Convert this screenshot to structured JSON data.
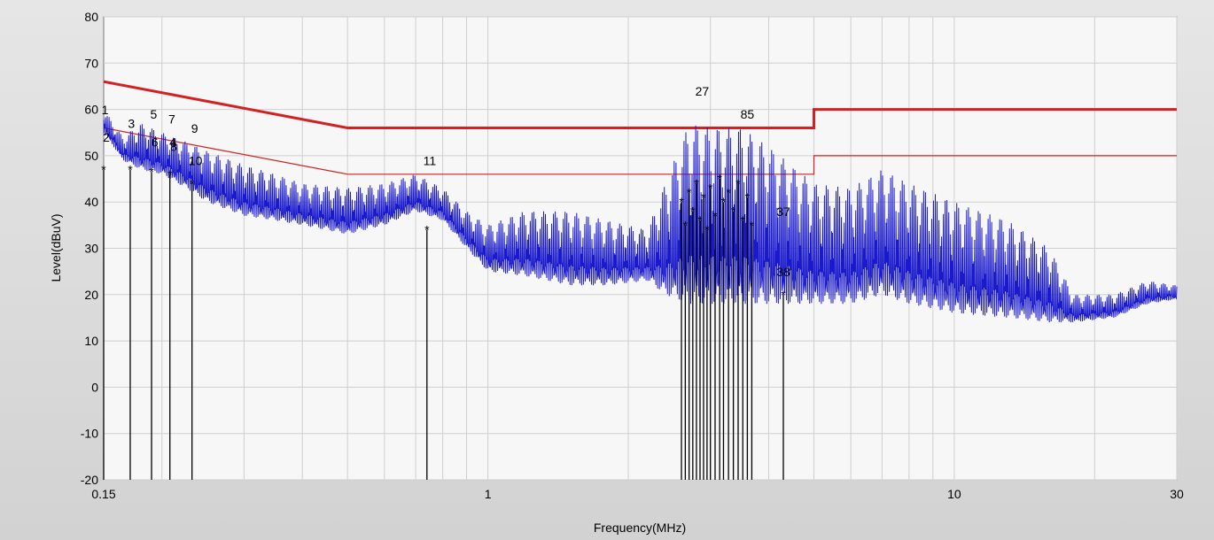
{
  "chart_data": {
    "type": "line",
    "xlabel": "Frequency(MHz)",
    "ylabel": "Level(dBuV)",
    "xscale": "log",
    "xlim": [
      0.15,
      30
    ],
    "ylim": [
      -20,
      80
    ],
    "grid": true,
    "x_tick_labels": [
      "0.15",
      "1",
      "10",
      "30"
    ],
    "x_tick_values": [
      0.15,
      1,
      10,
      30
    ],
    "y_tick_values": [
      -20,
      -10,
      0,
      10,
      20,
      30,
      40,
      50,
      60,
      70,
      80
    ],
    "y_tick_labels": [
      "-20",
      "-10",
      "0",
      "10",
      "20",
      "30",
      "40",
      "50",
      "60",
      "70",
      "80"
    ],
    "colors": {
      "spectrum": "#1a1acc",
      "limit": "#d42020",
      "marker": "#000000",
      "plot_background": "#f7f7f7",
      "grid": "#cfcfcf"
    },
    "limit_lines": [
      {
        "style": "thick",
        "points": [
          [
            0.15,
            66
          ],
          [
            0.5,
            56
          ],
          [
            5,
            56
          ],
          [
            5,
            60
          ],
          [
            30,
            60
          ]
        ]
      },
      {
        "style": "thin",
        "points": [
          [
            0.15,
            56
          ],
          [
            0.5,
            46
          ],
          [
            5,
            46
          ],
          [
            5,
            50
          ],
          [
            30,
            50
          ]
        ]
      }
    ],
    "spectrum_envelope": [
      {
        "x": 0.15,
        "peak": 60,
        "trough": 55
      },
      {
        "x": 0.165,
        "peak": 54,
        "trough": 49
      },
      {
        "x": 0.18,
        "peak": 57,
        "trough": 47
      },
      {
        "x": 0.2,
        "peak": 55,
        "trough": 46
      },
      {
        "x": 0.225,
        "peak": 53,
        "trough": 43
      },
      {
        "x": 0.25,
        "peak": 51,
        "trough": 40
      },
      {
        "x": 0.3,
        "peak": 48,
        "trough": 37
      },
      {
        "x": 0.35,
        "peak": 46,
        "trough": 36
      },
      {
        "x": 0.4,
        "peak": 44,
        "trough": 35
      },
      {
        "x": 0.5,
        "peak": 43,
        "trough": 33
      },
      {
        "x": 0.6,
        "peak": 44,
        "trough": 35
      },
      {
        "x": 0.7,
        "peak": 46,
        "trough": 38
      },
      {
        "x": 0.8,
        "peak": 43,
        "trough": 36
      },
      {
        "x": 0.9,
        "peak": 38,
        "trough": 30
      },
      {
        "x": 1.0,
        "peak": 35,
        "trough": 25
      },
      {
        "x": 1.2,
        "peak": 38,
        "trough": 24
      },
      {
        "x": 1.5,
        "peak": 38,
        "trough": 22
      },
      {
        "x": 1.8,
        "peak": 36,
        "trough": 22
      },
      {
        "x": 2.2,
        "peak": 34,
        "trough": 23
      },
      {
        "x": 2.4,
        "peak": 44,
        "trough": 20
      },
      {
        "x": 2.7,
        "peak": 57,
        "trough": 18
      },
      {
        "x": 3.0,
        "peak": 56,
        "trough": 18
      },
      {
        "x": 3.5,
        "peak": 56,
        "trough": 18
      },
      {
        "x": 4.0,
        "peak": 52,
        "trough": 18
      },
      {
        "x": 5.0,
        "peak": 44,
        "trough": 18
      },
      {
        "x": 6.0,
        "peak": 43,
        "trough": 18
      },
      {
        "x": 7.0,
        "peak": 47,
        "trough": 20
      },
      {
        "x": 8.0,
        "peak": 44,
        "trough": 18
      },
      {
        "x": 10.0,
        "peak": 40,
        "trough": 16
      },
      {
        "x": 13.0,
        "peak": 36,
        "trough": 15
      },
      {
        "x": 16.0,
        "peak": 30,
        "trough": 14
      },
      {
        "x": 18.0,
        "peak": 20,
        "trough": 14
      },
      {
        "x": 22.0,
        "peak": 20,
        "trough": 15
      },
      {
        "x": 26.0,
        "peak": 23,
        "trough": 18
      },
      {
        "x": 30.0,
        "peak": 22,
        "trough": 19
      }
    ],
    "markers": [
      {
        "label": "1",
        "x": 0.151,
        "y": 59
      },
      {
        "label": "2",
        "x": 0.152,
        "y": 53
      },
      {
        "label": "3",
        "x": 0.172,
        "y": 56
      },
      {
        "label": "5",
        "x": 0.192,
        "y": 58
      },
      {
        "label": "6",
        "x": 0.193,
        "y": 52
      },
      {
        "label": "7",
        "x": 0.21,
        "y": 57
      },
      {
        "label": "4",
        "x": 0.211,
        "y": 52
      },
      {
        "label": "8",
        "x": 0.212,
        "y": 51
      },
      {
        "label": "9",
        "x": 0.235,
        "y": 55
      },
      {
        "label": "10",
        "x": 0.236,
        "y": 48
      },
      {
        "label": "11",
        "x": 0.75,
        "y": 48
      },
      {
        "label": "37",
        "x": 4.3,
        "y": 37
      },
      {
        "label": "38",
        "x": 4.3,
        "y": 24
      },
      {
        "label": "27",
        "x": 2.88,
        "y": 63
      },
      {
        "label": "85",
        "x": 3.6,
        "y": 58
      }
    ],
    "marker_stems": [
      {
        "x": 0.15,
        "y": 47
      },
      {
        "x": 0.171,
        "y": 47
      },
      {
        "x": 0.19,
        "y": 46.5
      },
      {
        "x": 0.208,
        "y": 46
      },
      {
        "x": 0.232,
        "y": 44
      },
      {
        "x": 0.74,
        "y": 34
      },
      {
        "x": 2.6,
        "y": 40
      },
      {
        "x": 2.65,
        "y": 35
      },
      {
        "x": 2.7,
        "y": 42
      },
      {
        "x": 2.75,
        "y": 38
      },
      {
        "x": 2.8,
        "y": 44
      },
      {
        "x": 2.85,
        "y": 36
      },
      {
        "x": 2.9,
        "y": 41
      },
      {
        "x": 2.95,
        "y": 34
      },
      {
        "x": 3.0,
        "y": 43
      },
      {
        "x": 3.07,
        "y": 37
      },
      {
        "x": 3.14,
        "y": 45
      },
      {
        "x": 3.2,
        "y": 40
      },
      {
        "x": 3.28,
        "y": 42
      },
      {
        "x": 3.36,
        "y": 38
      },
      {
        "x": 3.44,
        "y": 44
      },
      {
        "x": 3.52,
        "y": 36
      },
      {
        "x": 3.6,
        "y": 41
      },
      {
        "x": 3.68,
        "y": 35
      },
      {
        "x": 4.3,
        "y": 20
      }
    ]
  }
}
